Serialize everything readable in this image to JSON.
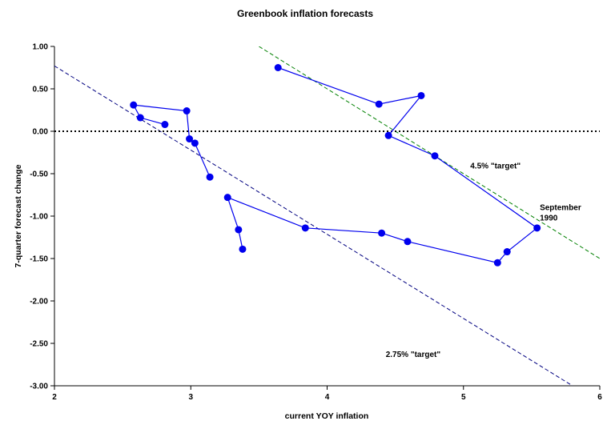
{
  "chart_data": {
    "type": "scatter",
    "title": "Greenbook inflation forecasts",
    "xlabel": "current YOY inflation",
    "ylabel": "7-quarter forecast change",
    "xlim": [
      2,
      6
    ],
    "ylim": [
      -3.0,
      1.0
    ],
    "x_ticks": [
      "2",
      "3",
      "4",
      "5",
      "6"
    ],
    "y_ticks": [
      "1.00",
      "0.50",
      "0.00",
      "-0.50",
      "-1.00",
      "-1.50",
      "-2.00",
      "-2.50",
      "-3.00"
    ],
    "grid": false,
    "legend": "none",
    "series": [
      {
        "color": "#0000ee",
        "marker": "circle",
        "x": [
          3.38,
          3.35,
          3.27,
          3.84,
          4.4,
          4.59,
          5.25,
          5.32,
          5.54,
          4.79,
          4.45,
          4.69,
          4.38,
          3.64
        ],
        "y": [
          -1.39,
          -1.16,
          -0.78,
          -1.14,
          -1.2,
          -1.3,
          -1.55,
          -1.42,
          -1.14,
          -0.29,
          -0.05,
          0.42,
          0.32,
          0.75
        ]
      },
      {
        "color": "#0000ee",
        "marker": "circle",
        "x": [
          3.14,
          3.03,
          2.99,
          2.97,
          2.58,
          2.63,
          2.81
        ],
        "y": [
          -0.54,
          -0.14,
          -0.09,
          0.24,
          0.31,
          0.16,
          0.08
        ]
      }
    ],
    "reference_lines": [
      {
        "label": "4.5% \"target\"",
        "color": "#008000",
        "style": "dashed",
        "x": [
          3.5,
          6.0
        ],
        "y": [
          1.0,
          -1.5
        ]
      },
      {
        "label": "2.75% \"target\"",
        "color": "#000080",
        "style": "dashed",
        "x": [
          2.0,
          5.8
        ],
        "y": [
          0.77,
          -3.0
        ]
      },
      {
        "label": "",
        "color": "#000000",
        "style": "dotted",
        "x": [
          2.0,
          6.0
        ],
        "y": [
          0.0,
          0.0
        ]
      }
    ],
    "annotations": [
      {
        "text": "4.5% \"target\"",
        "x": 5.05,
        "y": -0.44
      },
      {
        "text": "2.75% \"target\"",
        "x": 4.43,
        "y": -2.66
      },
      {
        "text": "September",
        "x": 5.56,
        "y": -0.93
      },
      {
        "text": "1990",
        "x": 5.56,
        "y": -1.05
      }
    ]
  }
}
